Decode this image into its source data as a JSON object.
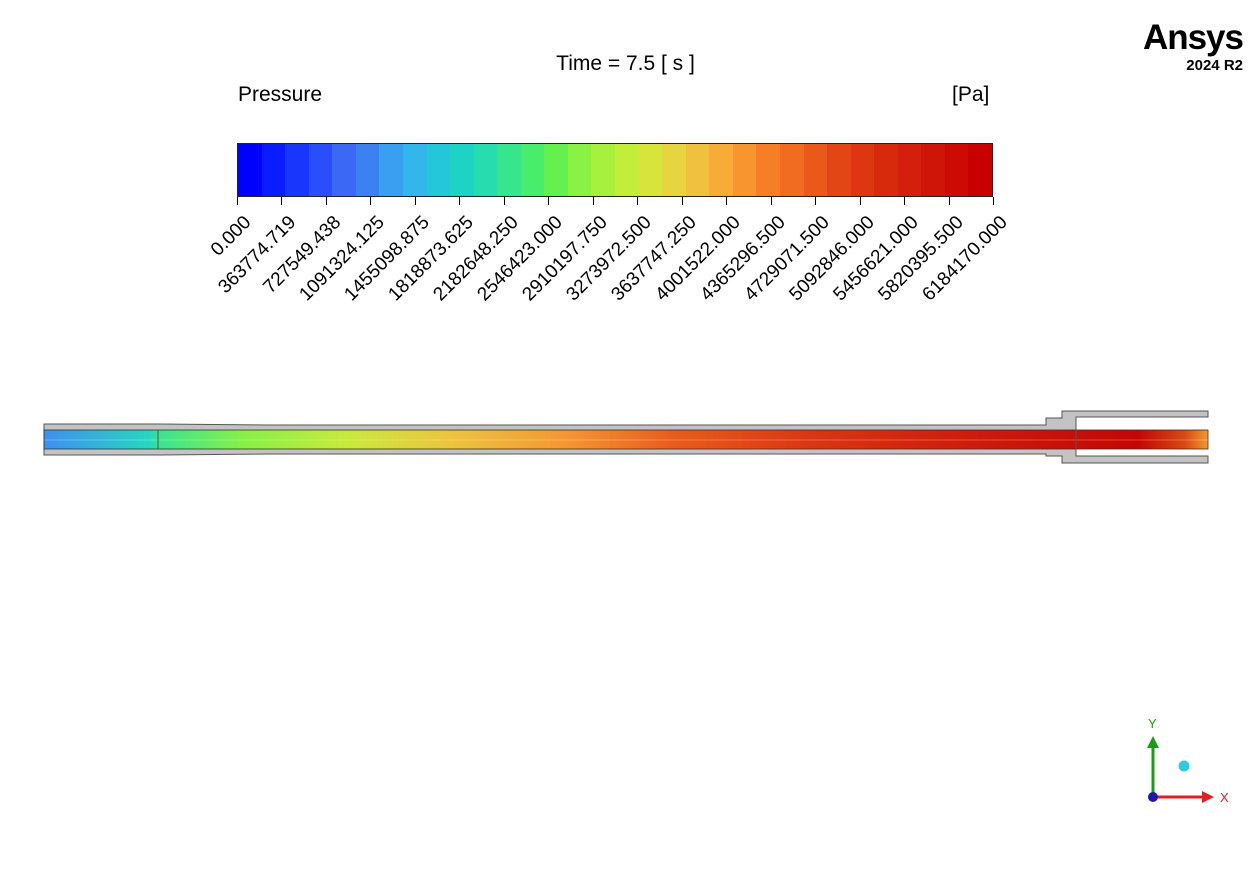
{
  "viewer": {
    "title": "Time = 7.5 [ s ]",
    "variable": "Pressure",
    "unit": "[Pa]"
  },
  "logo": {
    "name": "Ansys",
    "version": "2024 R2"
  },
  "legend": {
    "ticks": [
      "0.000",
      "363774.719",
      "727549.438",
      "1091324.125",
      "1455098.875",
      "1818873.625",
      "2182648.250",
      "2546423.000",
      "2910197.750",
      "3273972.500",
      "3637747.250",
      "4001522.000",
      "4365296.500",
      "4729071.500",
      "5092846.000",
      "5456621.000",
      "5820395.500",
      "6184170.000"
    ],
    "colors": [
      "#0000ff",
      "#0a1dff",
      "#1836fc",
      "#2a4ffa",
      "#3b68f5",
      "#3b82f0",
      "#3a9ef1",
      "#33b7ea",
      "#24c6d9",
      "#1ed2c4",
      "#27dcae",
      "#36e68e",
      "#48ee6b",
      "#66f04e",
      "#8af244",
      "#a7f03e",
      "#c2ed3b",
      "#d6e43c",
      "#e6d53f",
      "#f0c13f",
      "#f7ac38",
      "#f9952f",
      "#f67e27",
      "#f16b20",
      "#ea581a",
      "#e24615",
      "#dc3711",
      "#d72a0d",
      "#d31f0b",
      "#cf1507",
      "#cc0c04",
      "#c80000"
    ]
  },
  "axes": {
    "x_label": "X",
    "y_label": "Y"
  }
}
